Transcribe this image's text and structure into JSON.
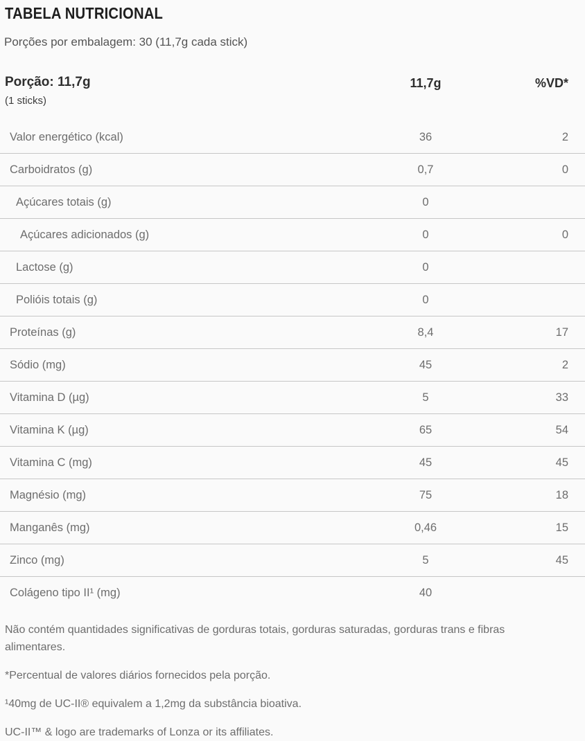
{
  "page": {
    "title": "TABELA NUTRICIONAL",
    "servings_line": "Porções por embalagem: 30 (11,7g cada stick)"
  },
  "table": {
    "header": {
      "portion_label": "Porção: 11,7g",
      "portion_sub": "(1 sticks)",
      "amount_col": "11,7g",
      "dv_col": "%VD*"
    },
    "rows": [
      {
        "label": "Valor energético (kcal)",
        "amount": "36",
        "dv": "2",
        "indent": 0
      },
      {
        "label": "Carboidratos (g)",
        "amount": "0,7",
        "dv": "0",
        "indent": 0
      },
      {
        "label": "Açúcares totais (g)",
        "amount": "0",
        "dv": "",
        "indent": 1
      },
      {
        "label": "Açúcares adicionados (g)",
        "amount": "0",
        "dv": "0",
        "indent": 2
      },
      {
        "label": "Lactose (g)",
        "amount": "0",
        "dv": "",
        "indent": 1
      },
      {
        "label": "Polióis totais (g)",
        "amount": "0",
        "dv": "",
        "indent": 1
      },
      {
        "label": "Proteínas (g)",
        "amount": "8,4",
        "dv": "17",
        "indent": 0
      },
      {
        "label": "Sódio (mg)",
        "amount": "45",
        "dv": "2",
        "indent": 0
      },
      {
        "label": "Vitamina D (µg)",
        "amount": "5",
        "dv": "33",
        "indent": 0
      },
      {
        "label": "Vitamina K (µg)",
        "amount": "65",
        "dv": "54",
        "indent": 0
      },
      {
        "label": "Vitamina C (mg)",
        "amount": "45",
        "dv": "45",
        "indent": 0
      },
      {
        "label": "Magnésio (mg)",
        "amount": "75",
        "dv": "18",
        "indent": 0
      },
      {
        "label": "Manganês (mg)",
        "amount": "0,46",
        "dv": "15",
        "indent": 0
      },
      {
        "label": "Zinco (mg)",
        "amount": "5",
        "dv": "45",
        "indent": 0
      },
      {
        "label": "Colágeno tipo II¹ (mg)",
        "amount": "40",
        "dv": "",
        "indent": 0
      }
    ]
  },
  "footnotes": [
    "Não contém quantidades significativas de gorduras totais, gorduras saturadas, gorduras trans e fibras alimentares.",
    "*Percentual de valores diários fornecidos pela porção.",
    "¹40mg de UC-II® equivalem a 1,2mg da substância bioativa.",
    "UC-II™ & logo are trademarks of Lonza or its affiliates."
  ],
  "colors": {
    "background": "#fafafa",
    "title_text": "#1f1f1f",
    "header_text": "#2e2e2e",
    "body_text": "#6d6d6d",
    "separator": "#c6c6c6"
  }
}
